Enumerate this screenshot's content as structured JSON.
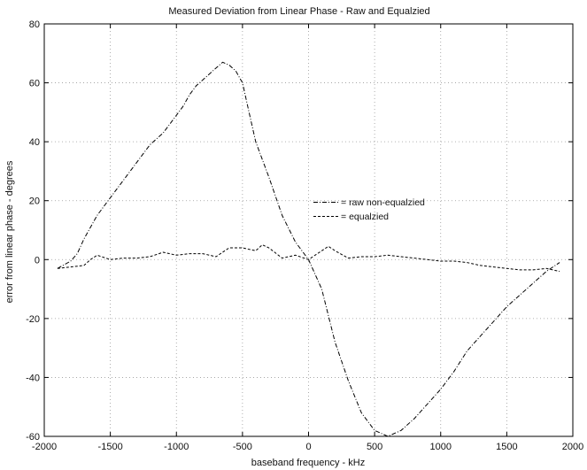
{
  "chart_data": {
    "type": "line",
    "title": "Measured Deviation from Linear Phase - Raw and Equalzied",
    "xlabel": "baseband frequency - kHz",
    "ylabel": "error from linear phase - degrees",
    "xlim": [
      -2000,
      2000
    ],
    "ylim": [
      -60,
      80
    ],
    "xticks": [
      -2000,
      -1500,
      -1000,
      -500,
      0,
      500,
      1000,
      1500,
      2000
    ],
    "yticks": [
      -60,
      -40,
      -20,
      0,
      20,
      40,
      60,
      80
    ],
    "grid": true,
    "legend_position": "center-right",
    "series": [
      {
        "name": "raw non-equalzied",
        "style": "dash-dot",
        "x": [
          -1900,
          -1800,
          -1750,
          -1700,
          -1600,
          -1500,
          -1400,
          -1300,
          -1200,
          -1100,
          -1000,
          -950,
          -900,
          -850,
          -800,
          -700,
          -650,
          -600,
          -550,
          -500,
          -450,
          -400,
          -300,
          -200,
          -100,
          0,
          100,
          200,
          300,
          400,
          500,
          600,
          700,
          800,
          900,
          1000,
          1100,
          1200,
          1300,
          1400,
          1500,
          1600,
          1700,
          1800,
          1900
        ],
        "y": [
          -3,
          -0.5,
          2,
          7,
          15,
          21,
          27,
          33,
          39,
          43,
          49,
          52,
          56,
          59,
          61,
          65,
          67,
          66,
          64,
          60,
          50,
          40,
          28,
          15,
          6,
          0,
          -10,
          -28,
          -41,
          -52,
          -58,
          -60,
          -58,
          -54,
          -49,
          -44,
          -38,
          -31,
          -26,
          -21,
          -16,
          -12,
          -8,
          -4,
          -1
        ]
      },
      {
        "name": "equalzied",
        "style": "dashed",
        "x": [
          -1900,
          -1800,
          -1700,
          -1650,
          -1600,
          -1500,
          -1400,
          -1300,
          -1200,
          -1100,
          -1000,
          -900,
          -800,
          -700,
          -600,
          -500,
          -400,
          -350,
          -300,
          -200,
          -100,
          0,
          100,
          150,
          200,
          300,
          400,
          500,
          600,
          700,
          800,
          900,
          1000,
          1100,
          1200,
          1300,
          1400,
          1500,
          1600,
          1700,
          1800,
          1900
        ],
        "y": [
          -3,
          -2.5,
          -2,
          0,
          1.5,
          0,
          0.5,
          0.5,
          1,
          2.5,
          1.5,
          2,
          2,
          1,
          4,
          4,
          3,
          5,
          4,
          0.5,
          1.5,
          0,
          3,
          4.5,
          3,
          0.5,
          1,
          1,
          1.5,
          1,
          0.5,
          0,
          -0.5,
          -0.5,
          -1,
          -2,
          -2.5,
          -3,
          -3.5,
          -3.5,
          -3,
          -4
        ]
      }
    ]
  }
}
